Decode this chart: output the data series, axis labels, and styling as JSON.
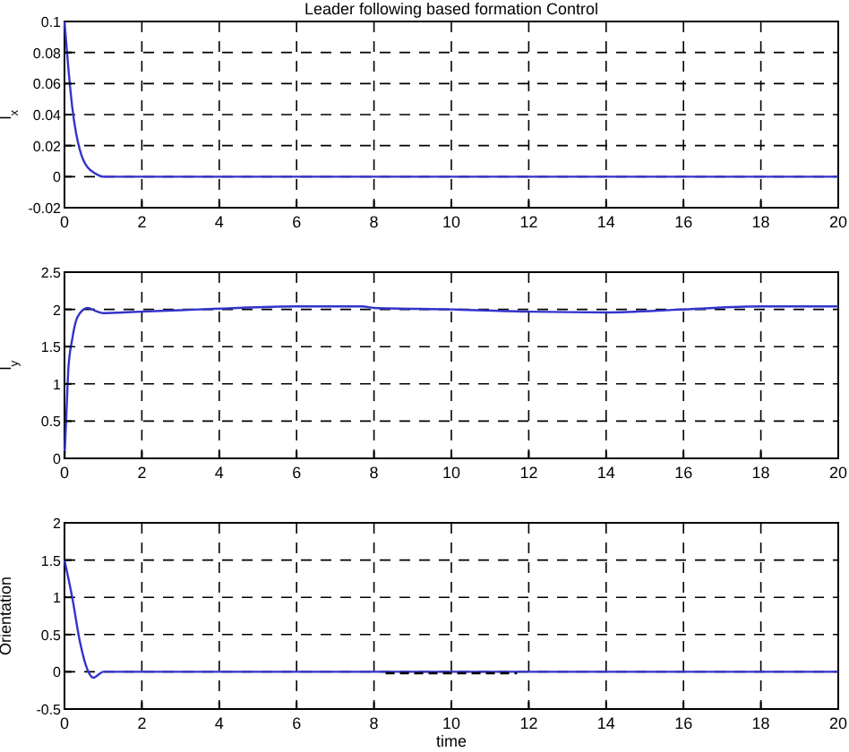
{
  "chart_data": [
    {
      "type": "line",
      "title": "Leader following based formation Control",
      "ylabel": "l$_{x}$",
      "series": [
        {
          "color": "#3333cc",
          "x": [
            0,
            0.1,
            0.2,
            0.3,
            0.4,
            0.5,
            0.6,
            0.8,
            1.0,
            1.2,
            20
          ],
          "values": [
            0.1,
            0.07,
            0.045,
            0.028,
            0.017,
            0.01,
            0.006,
            0.002,
            0,
            0,
            0
          ]
        }
      ],
      "xlim": [
        0,
        20
      ],
      "xticks": [
        0,
        2,
        4,
        6,
        8,
        10,
        12,
        14,
        16,
        18,
        20
      ],
      "ylim": [
        -0.02,
        0.1
      ],
      "yticks": [
        -0.02,
        0,
        0.02,
        0.04,
        0.06,
        0.08,
        0.1
      ],
      "grid": true,
      "line_style": "solid",
      "marker": "none"
    },
    {
      "type": "line",
      "ylabel": "l$_{y}$",
      "series": [
        {
          "color": "#3333cc",
          "x": [
            0,
            0.05,
            0.1,
            0.2,
            0.3,
            0.4,
            0.6,
            0.8,
            1.0,
            1.5,
            2,
            3,
            4,
            6,
            7.7,
            8,
            10,
            12,
            14,
            16,
            18,
            20
          ],
          "values": [
            0,
            0.6,
            1.2,
            1.6,
            1.85,
            1.95,
            2.02,
            1.98,
            1.95,
            1.96,
            1.97,
            1.99,
            2.01,
            2.04,
            2.04,
            2.02,
            2.0,
            1.97,
            1.96,
            2.0,
            2.04,
            2.04
          ]
        }
      ],
      "xlim": [
        0,
        20
      ],
      "xticks": [
        0,
        2,
        4,
        6,
        8,
        10,
        12,
        14,
        16,
        18,
        20
      ],
      "ylim": [
        0,
        2.5
      ],
      "yticks": [
        0,
        0.5,
        1,
        1.5,
        2,
        2.5
      ],
      "grid": true,
      "line_style": "solid",
      "marker": "none"
    },
    {
      "type": "line",
      "ylabel": "Orientation",
      "xlabel": "time",
      "series": [
        {
          "color": "#3333cc",
          "x": [
            0,
            0.2,
            0.4,
            0.6,
            0.75,
            0.9,
            1.0,
            20
          ],
          "values": [
            1.5,
            1.0,
            0.4,
            0.02,
            -0.08,
            -0.03,
            0,
            0
          ]
        },
        {
          "color": "#000000",
          "line_style": "dashed",
          "x": [
            8.3,
            11.7
          ],
          "values": [
            -0.02,
            -0.02
          ]
        }
      ],
      "xlim": [
        0,
        20
      ],
      "xticks": [
        0,
        2,
        4,
        6,
        8,
        10,
        12,
        14,
        16,
        18,
        20
      ],
      "ylim": [
        -0.5,
        2
      ],
      "yticks": [
        -0.5,
        0,
        0.5,
        1,
        1.5,
        2
      ],
      "grid": true,
      "line_style": "solid",
      "marker": "none"
    }
  ]
}
